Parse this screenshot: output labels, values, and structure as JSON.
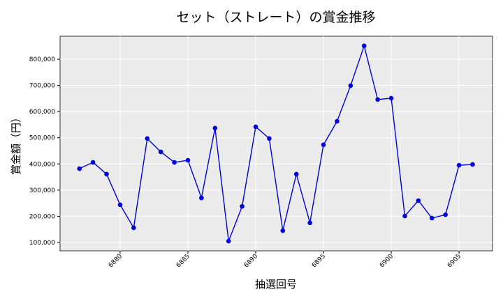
{
  "chart_data": {
    "type": "line",
    "title": "セット（ストレート）の賞金推移",
    "xlabel": "抽選回号",
    "ylabel": "賞金額（円）",
    "x": [
      6877,
      6878,
      6879,
      6880,
      6881,
      6882,
      6883,
      6884,
      6885,
      6886,
      6887,
      6888,
      6889,
      6890,
      6891,
      6892,
      6893,
      6894,
      6895,
      6896,
      6897,
      6898,
      6899,
      6900,
      6901,
      6902,
      6903,
      6904,
      6905,
      6906
    ],
    "series": [
      {
        "color": "#0000dd",
        "values": [
          382000,
          406000,
          361000,
          244000,
          156000,
          497000,
          446000,
          406000,
          414000,
          270000,
          537000,
          105000,
          238000,
          542000,
          497000,
          145000,
          361000,
          175000,
          473000,
          563000,
          699000,
          851000,
          646000,
          651000,
          201000,
          260000,
          193000,
          206000,
          395000,
          398000
        ]
      }
    ],
    "xlim": [
      6875.57,
      6907.47
    ],
    "ylim": [
      68000,
      887800
    ],
    "xticks": [
      6880,
      6885,
      6890,
      6895,
      6900,
      6905
    ],
    "yticks": [
      {
        "value": 100000,
        "label": "100,000"
      },
      {
        "value": 200000,
        "label": "200,000"
      },
      {
        "value": 300000,
        "label": "300,000"
      },
      {
        "value": 400000,
        "label": "400,000"
      },
      {
        "value": 500000,
        "label": "500,000"
      },
      {
        "value": 600000,
        "label": "600,000"
      },
      {
        "value": 700000,
        "label": "700,000"
      },
      {
        "value": 800000,
        "label": "800,000"
      }
    ],
    "grid": true
  }
}
